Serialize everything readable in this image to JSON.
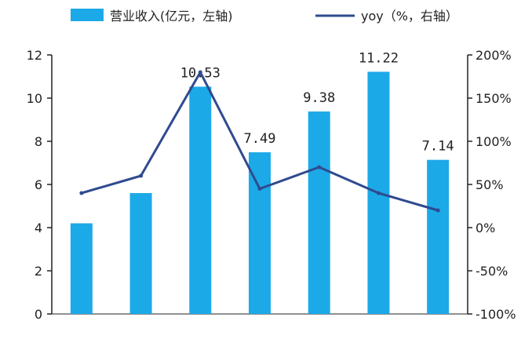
{
  "chart_data": {
    "type": "bar",
    "categories": [
      "",
      "",
      "",
      "",
      "",
      "",
      ""
    ],
    "series": [
      {
        "name": "营业收入(亿元，左轴)",
        "type": "bar",
        "axis": "left",
        "color": "#1CA9E8",
        "values": [
          4.2,
          5.6,
          10.53,
          7.49,
          9.38,
          11.22,
          7.14
        ]
      },
      {
        "name": "yoy（%，右轴）",
        "type": "line",
        "axis": "right",
        "color": "#2F4A8F",
        "values": [
          40,
          60,
          180,
          45,
          70,
          40,
          20
        ]
      }
    ],
    "data_labels": [
      "",
      "",
      "10.53",
      "7.49",
      "9.38",
      "11.22",
      "7.14"
    ],
    "left_axis": {
      "min": 0,
      "max": 12,
      "ticks": [
        "0",
        "2",
        "4",
        "6",
        "8",
        "10",
        "12"
      ]
    },
    "right_axis": {
      "min": -100,
      "max": 200,
      "ticks": [
        "-100%",
        "-50%",
        "0%",
        "50%",
        "100%",
        "150%",
        "200%"
      ]
    },
    "legend_position": "top",
    "grid": false
  }
}
